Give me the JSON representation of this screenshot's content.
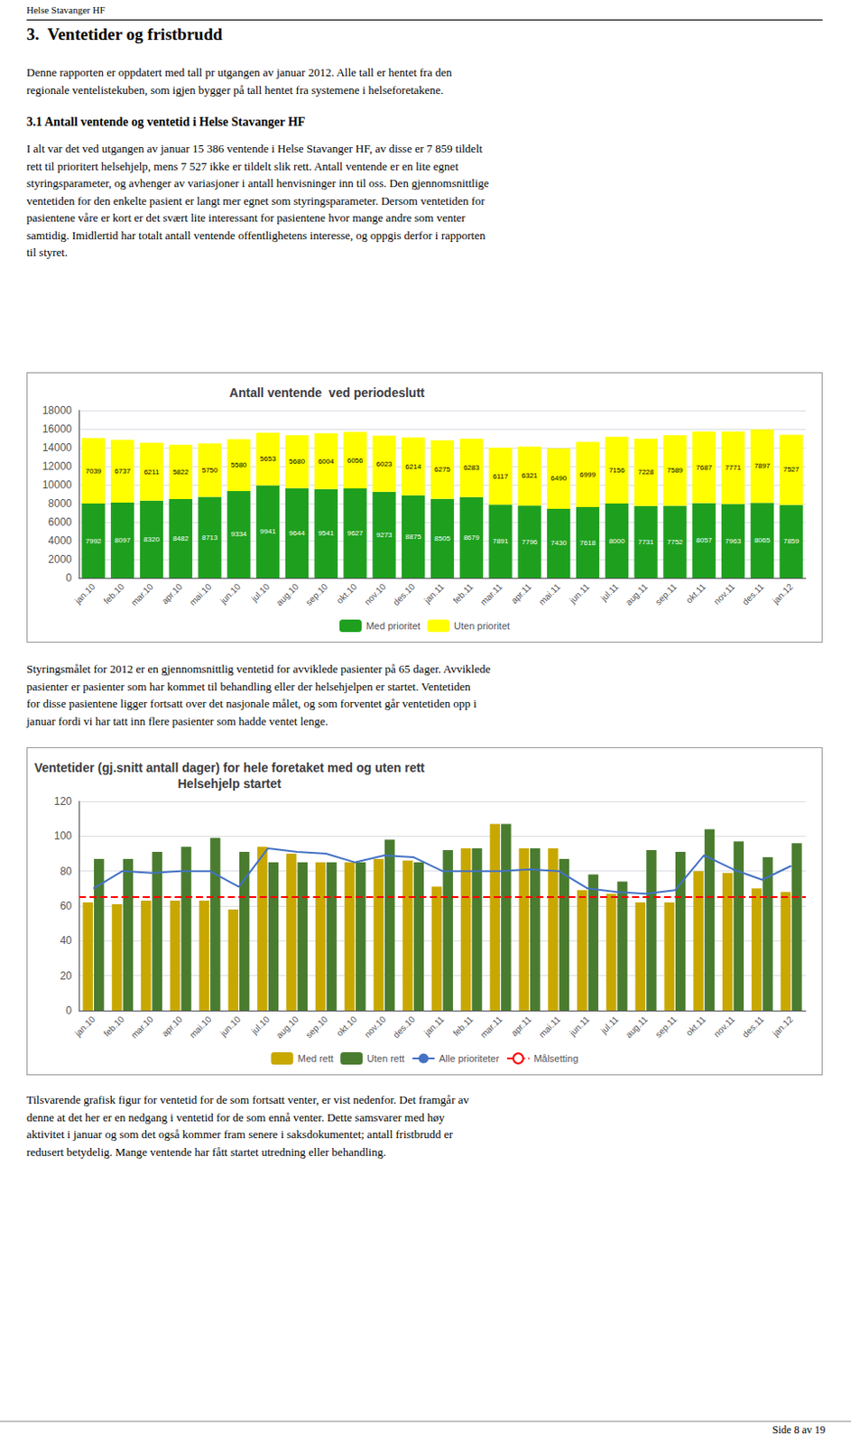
{
  "page_header": "Helse Stavanger HF",
  "section_title": "3.  Ventetider og fristbrudd",
  "body_text1": "Denne rapporten er oppdatert med tall pr utgangen av januar 2012. Alle tall er hentet fra den\nregionale ventelistekuben, som igjen bygger på tall hentet fra systemene i helseforetakene.",
  "subsection_title": "3.1 Antall ventende og ventetid i Helse Stavanger HF",
  "body_text2": "I alt var det ved utgangen av januar 15 386 ventende i Helse Stavanger HF, av disse er 7 859 tildelt\nrett til prioritert helsehjelp, mens 7 527 ikke er tildelt slik rett. Antall ventende er en lite egnet\nstyringsparameter, og avhenger av variasjoner i antall henvisninger inn til oss. Den gjennomsnittlige\nventetiden for den enkelte pasient er langt mer egnet som styringsparameter. Dersom ventetiden for\npasientene våre er kort er det svært lite interessant for pasientene hvor mange andre som venter\nsamtidig. Imidlertid har totalt antall ventende offentlighetens interesse, og oppgis derfor i rapporten\ntil styret.",
  "middle_text": "Styringsmålet for 2012 er en gjennomsnittlig ventetid for avviklede pasienter på 65 dager. Avviklede\npasienter er pasienter som har kommet til behandling eller der helsehjelpen er startet. Ventetiden\nfor disse pasientene ligger fortsatt over det nasjonale målet, og som forventet går ventetiden opp i\njanuar fordi vi har tatt inn flere pasienter som hadde ventet lenge.",
  "footer_text": "Tilsvarende grafisk figur for ventetid for de som fortsatt venter, er vist nedenfor. Det framgår av\ndenne at det her er en nedgang i ventetid for de som ennå venter. Dette samsvarer med høy\naktivitet i januar og som det også kommer fram senere i saksdokumentet; antall fristbrudd er\nredusert betydelig. Mange ventende har fått startet utredning eller behandling.",
  "page_footer": "Side 8 av 19",
  "chart_data": [
    {
      "type": "bar",
      "title": "Antall ventende  ved periodeslutt",
      "categories": [
        "jan.10",
        "feb.10",
        "mar.10",
        "apr.10",
        "mai.10",
        "jun.10",
        "jul.10",
        "aug.10",
        "sep.10",
        "okt.10",
        "nov.10",
        "des.10",
        "jan.11",
        "feb.11",
        "mar.11",
        "apr.11",
        "mai.11",
        "jun.11",
        "jul.11",
        "aug.11",
        "sep.11",
        "okt.11",
        "nov.11",
        "des.11",
        "jan.12"
      ],
      "series": [
        {
          "name": "Med prioritet",
          "color": "#1ea01e",
          "values": [
            7992,
            8097,
            8320,
            8482,
            8713,
            9334,
            9941,
            9644,
            9541,
            9627,
            9273,
            8875,
            8505,
            8679,
            7891,
            7796,
            7430,
            7618,
            8000,
            7731,
            7752,
            8057,
            7963,
            8065,
            7859
          ]
        },
        {
          "name": "Uten prioritet",
          "color": "#ffff00",
          "values": [
            7039,
            6737,
            6211,
            5822,
            5750,
            5580,
            5653,
            5680,
            6004,
            6056,
            6023,
            6214,
            6275,
            6283,
            6117,
            6321,
            6490,
            6999,
            7156,
            7228,
            7589,
            7687,
            7771,
            7897,
            7527
          ]
        }
      ],
      "stacked": true,
      "data_labels": true,
      "ylim": [
        0,
        18000
      ],
      "yticks": [
        0,
        2000,
        4000,
        6000,
        8000,
        10000,
        12000,
        14000,
        16000,
        18000
      ],
      "grid": true,
      "legend": "bottom"
    },
    {
      "type": "bar",
      "title": "Ventetider (gj.snitt antall dager) for hele foretaket med og uten rett\nHelsehjelp startet",
      "categories": [
        "jan.10",
        "feb.10",
        "mar.10",
        "apr.10",
        "mai.10",
        "jun.10",
        "jul.10",
        "aug.10",
        "sep.10",
        "okt.10",
        "nov.10",
        "des.10",
        "jan.11",
        "feb.11",
        "mar.11",
        "apr.11",
        "mai.11",
        "jun.11",
        "jul.11",
        "aug.11",
        "sep.11",
        "okt.11",
        "nov.11",
        "des.11",
        "jan.12"
      ],
      "series": [
        {
          "name": "Med rett",
          "type": "bar",
          "color": "#c8a800",
          "values": [
            62,
            61,
            63,
            63,
            63,
            58,
            94,
            90,
            85,
            85,
            87,
            86,
            71,
            93,
            107,
            93,
            93,
            69,
            67,
            62,
            62,
            80,
            79,
            70,
            68
          ]
        },
        {
          "name": "Uten rett",
          "type": "bar",
          "color": "#4a7c2f",
          "values": [
            87,
            87,
            91,
            94,
            99,
            91,
            85,
            85,
            85,
            85,
            98,
            85,
            92,
            93,
            107,
            93,
            87,
            78,
            74,
            92,
            91,
            104,
            97,
            88,
            96
          ]
        },
        {
          "name": "Alle prioriteter",
          "type": "line",
          "color": "#4472c4",
          "marker": "none",
          "line_style": "solid",
          "values": [
            70,
            80,
            79,
            80,
            80,
            71,
            93,
            91,
            90,
            85,
            89,
            88,
            80,
            80,
            80,
            81,
            80,
            70,
            68,
            67,
            69,
            89,
            81,
            75,
            83
          ]
        },
        {
          "name": "Målsetting",
          "type": "hline",
          "color": "#ff0000",
          "line_style": "dashed",
          "value": 65
        }
      ],
      "ylim": [
        0,
        120
      ],
      "yticks": [
        0,
        20,
        40,
        60,
        80,
        100,
        120
      ],
      "grid": true,
      "legend": "bottom"
    }
  ]
}
